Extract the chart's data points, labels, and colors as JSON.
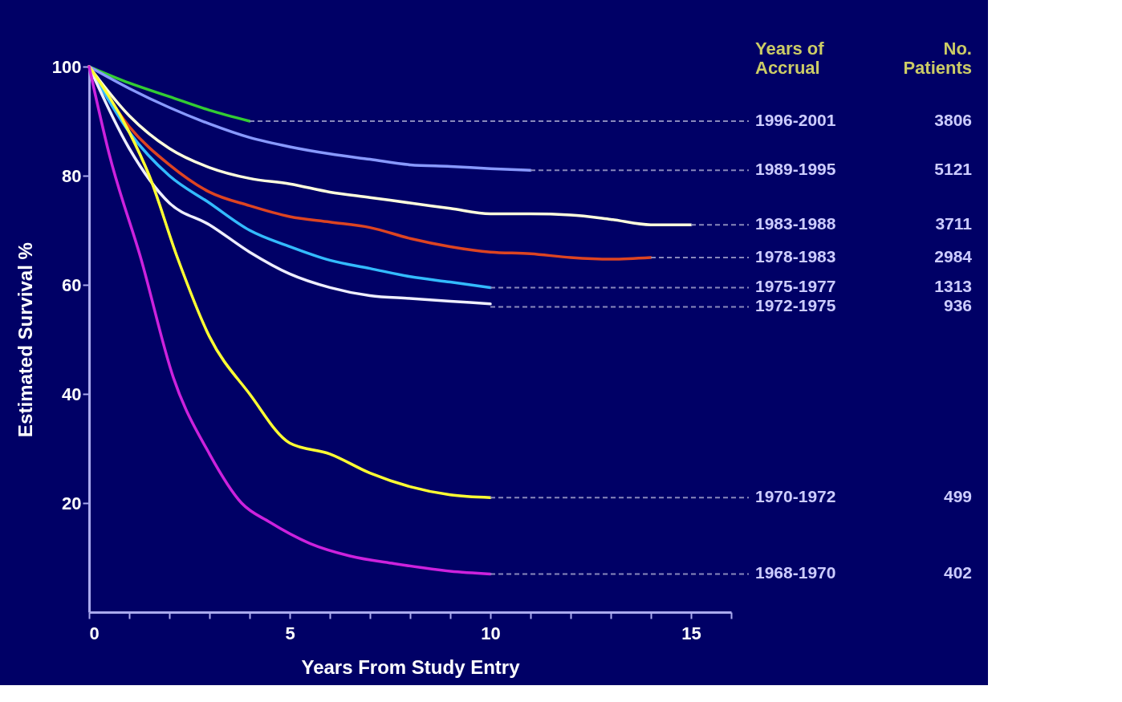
{
  "chart_data": {
    "type": "line",
    "xlabel": "Years From Study Entry",
    "ylabel": "Estimated Survival %",
    "legend_title": "Years of Accrual",
    "annotations": [
      "No. Patients",
      "3806",
      "5121",
      "3711",
      "2984",
      "1313",
      "936",
      "499",
      "402"
    ],
    "xlim": [
      0,
      16
    ],
    "ylim": [
      0,
      100
    ],
    "xticks": [
      0,
      {
        "value": 1,
        "label": null
      },
      {
        "value": 2,
        "label": null
      },
      {
        "value": 3,
        "label": null
      },
      {
        "value": 4,
        "label": null
      },
      5,
      {
        "value": 6,
        "label": null
      },
      {
        "value": 7,
        "label": null
      },
      {
        "value": 8,
        "label": null
      },
      {
        "value": 9,
        "label": null
      },
      10,
      {
        "value": 11,
        "label": null
      },
      {
        "value": 12,
        "label": null
      },
      {
        "value": 13,
        "label": null
      },
      {
        "value": 14,
        "label": null
      },
      15,
      {
        "value": 16,
        "label": null
      }
    ],
    "yticks": [
      20,
      40,
      60,
      80,
      100
    ],
    "grid": false,
    "legend": "right",
    "marker": "none",
    "line_style": "solid",
    "series": [
      {
        "name": "1996-2001",
        "color": "#33cc33",
        "x": [
          0,
          1,
          2,
          3,
          4
        ],
        "values": [
          100,
          97,
          94.5,
          92,
          90
        ]
      },
      {
        "name": "1989-1995",
        "color": "#8899ff",
        "x": [
          0,
          1,
          2,
          3,
          4,
          5,
          6,
          7,
          8,
          9,
          10,
          11
        ],
        "values": [
          100,
          96,
          92.5,
          89.5,
          87,
          85.3,
          84,
          83,
          82,
          81.7,
          81.3,
          81
        ]
      },
      {
        "name": "1983-1988",
        "color": "#ffffdd",
        "x": [
          0,
          1,
          2,
          3,
          4,
          5,
          6,
          7,
          8,
          9,
          10,
          11,
          12,
          13,
          14,
          15
        ],
        "values": [
          100,
          91,
          85,
          81.5,
          79.5,
          78.5,
          77,
          76,
          75,
          74,
          73,
          73,
          72.8,
          72,
          71,
          71
        ]
      },
      {
        "name": "1978-1983",
        "color": "#dd4422",
        "x": [
          0,
          1,
          2,
          3,
          4,
          5,
          6,
          7,
          8,
          9,
          10,
          11,
          12,
          13,
          14
        ],
        "values": [
          100,
          89,
          82,
          77,
          74.5,
          72.5,
          71.5,
          70.5,
          68.5,
          67,
          66,
          65.7,
          65,
          64.7,
          65
        ]
      },
      {
        "name": "1975-1977",
        "color": "#33bbff",
        "x": [
          0,
          1,
          2,
          3,
          4,
          5,
          6,
          7,
          8,
          9,
          10
        ],
        "values": [
          100,
          88,
          80,
          75,
          70,
          67,
          64.5,
          63,
          61.5,
          60.5,
          59.5
        ]
      },
      {
        "name": "1972-1975",
        "color": "#eeeeff",
        "x": [
          0,
          1,
          2,
          3,
          4,
          5,
          6,
          7,
          8,
          9,
          10
        ],
        "values": [
          100,
          85,
          75,
          71,
          66,
          62,
          59.5,
          58,
          57.5,
          57,
          56.5
        ]
      },
      {
        "name": "1970-1972",
        "color": "#ffff33",
        "x": [
          0,
          1,
          1.5,
          2.2,
          3,
          4,
          5,
          6,
          7,
          8,
          9,
          10
        ],
        "values": [
          100,
          88,
          80,
          65,
          50.5,
          40,
          31,
          29,
          25.5,
          23,
          21.5,
          21
        ]
      },
      {
        "name": "1968-1970",
        "color": "#cc22dd",
        "x": [
          0,
          0.5,
          1.3,
          2.1,
          3,
          3.8,
          4.5,
          5.5,
          6.5,
          7.6,
          9,
          10
        ],
        "values": [
          100,
          84,
          64.6,
          43,
          29,
          20,
          16.5,
          12.6,
          10.3,
          8.9,
          7.5,
          7
        ]
      }
    ]
  }
}
